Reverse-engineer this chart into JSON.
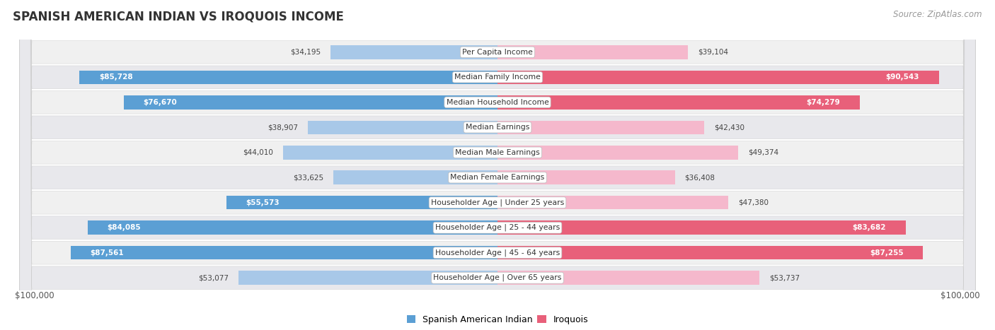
{
  "title": "SPANISH AMERICAN INDIAN VS IROQUOIS INCOME",
  "source": "Source: ZipAtlas.com",
  "categories": [
    "Per Capita Income",
    "Median Family Income",
    "Median Household Income",
    "Median Earnings",
    "Median Male Earnings",
    "Median Female Earnings",
    "Householder Age | Under 25 years",
    "Householder Age | 25 - 44 years",
    "Householder Age | 45 - 64 years",
    "Householder Age | Over 65 years"
  ],
  "spanish_values": [
    34195,
    85728,
    76670,
    38907,
    44010,
    33625,
    55573,
    84085,
    87561,
    53077
  ],
  "iroquois_values": [
    39104,
    90543,
    74279,
    42430,
    49374,
    36408,
    47380,
    83682,
    87255,
    53737
  ],
  "spanish_labels": [
    "$34,195",
    "$85,728",
    "$76,670",
    "$38,907",
    "$44,010",
    "$33,625",
    "$55,573",
    "$84,085",
    "$87,561",
    "$53,077"
  ],
  "iroquois_labels": [
    "$39,104",
    "$90,543",
    "$74,279",
    "$42,430",
    "$49,374",
    "$36,408",
    "$47,380",
    "$83,682",
    "$87,255",
    "$53,737"
  ],
  "max_value": 100000,
  "spanish_color_light": "#a8c8e8",
  "spanish_color_dark": "#5b9fd4",
  "iroquois_color_light": "#f5b8cc",
  "iroquois_color_dark": "#e8607a",
  "row_bg_odd": "#f0f0f0",
  "row_bg_even": "#e8e8ec",
  "legend_spanish": "Spanish American Indian",
  "legend_iroquois": "Iroquois",
  "label_threshold": 55000
}
